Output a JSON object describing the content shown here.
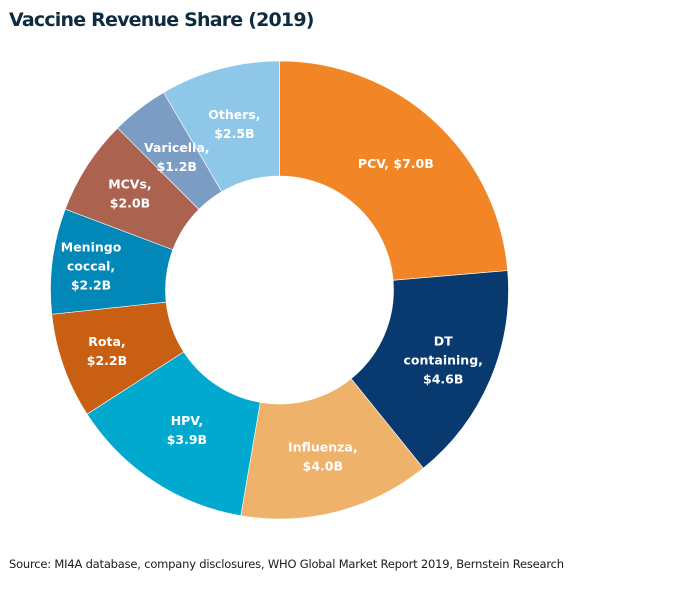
{
  "chart_data": {
    "type": "pie",
    "variant": "donut",
    "title": "Vaccine Revenue Share (2019)",
    "source": "Source: MI4A database, company disclosures, WHO Global Market Report 2019, Bernstein Research",
    "unit": "$B",
    "start": "12 o'clock",
    "direction": "clockwise",
    "slices": [
      {
        "name": "PCV",
        "value": 7.0,
        "label_lines": [
          "PCV, $7.0B"
        ],
        "color": "#f28627"
      },
      {
        "name": "DT containing",
        "value": 4.6,
        "label_lines": [
          "DT",
          "containing,",
          "$4.6B"
        ],
        "color": "#083a6f"
      },
      {
        "name": "Influenza",
        "value": 4.0,
        "label_lines": [
          "Influenza,",
          "$4.0B"
        ],
        "color": "#efb26b"
      },
      {
        "name": "HPV",
        "value": 3.9,
        "label_lines": [
          "HPV,",
          "$3.9B"
        ],
        "color": "#01a9cf"
      },
      {
        "name": "Rota",
        "value": 2.2,
        "label_lines": [
          "Rota,",
          "$2.2B"
        ],
        "color": "#c95f13"
      },
      {
        "name": "Meningococcal",
        "value": 2.2,
        "label_lines": [
          "Meningo",
          "coccal,",
          "$2.2B"
        ],
        "color": "#0287b9"
      },
      {
        "name": "MCVs",
        "value": 2.0,
        "label_lines": [
          "MCVs,",
          "$2.0B"
        ],
        "color": "#ab6350"
      },
      {
        "name": "Varicella",
        "value": 1.2,
        "label_lines": [
          "Varicella,",
          "$1.2B"
        ],
        "color": "#7b9dc3"
      },
      {
        "name": "Others",
        "value": 2.5,
        "label_lines": [
          "Others,",
          "$2.5B"
        ],
        "color": "#8ec7e8"
      }
    ]
  }
}
